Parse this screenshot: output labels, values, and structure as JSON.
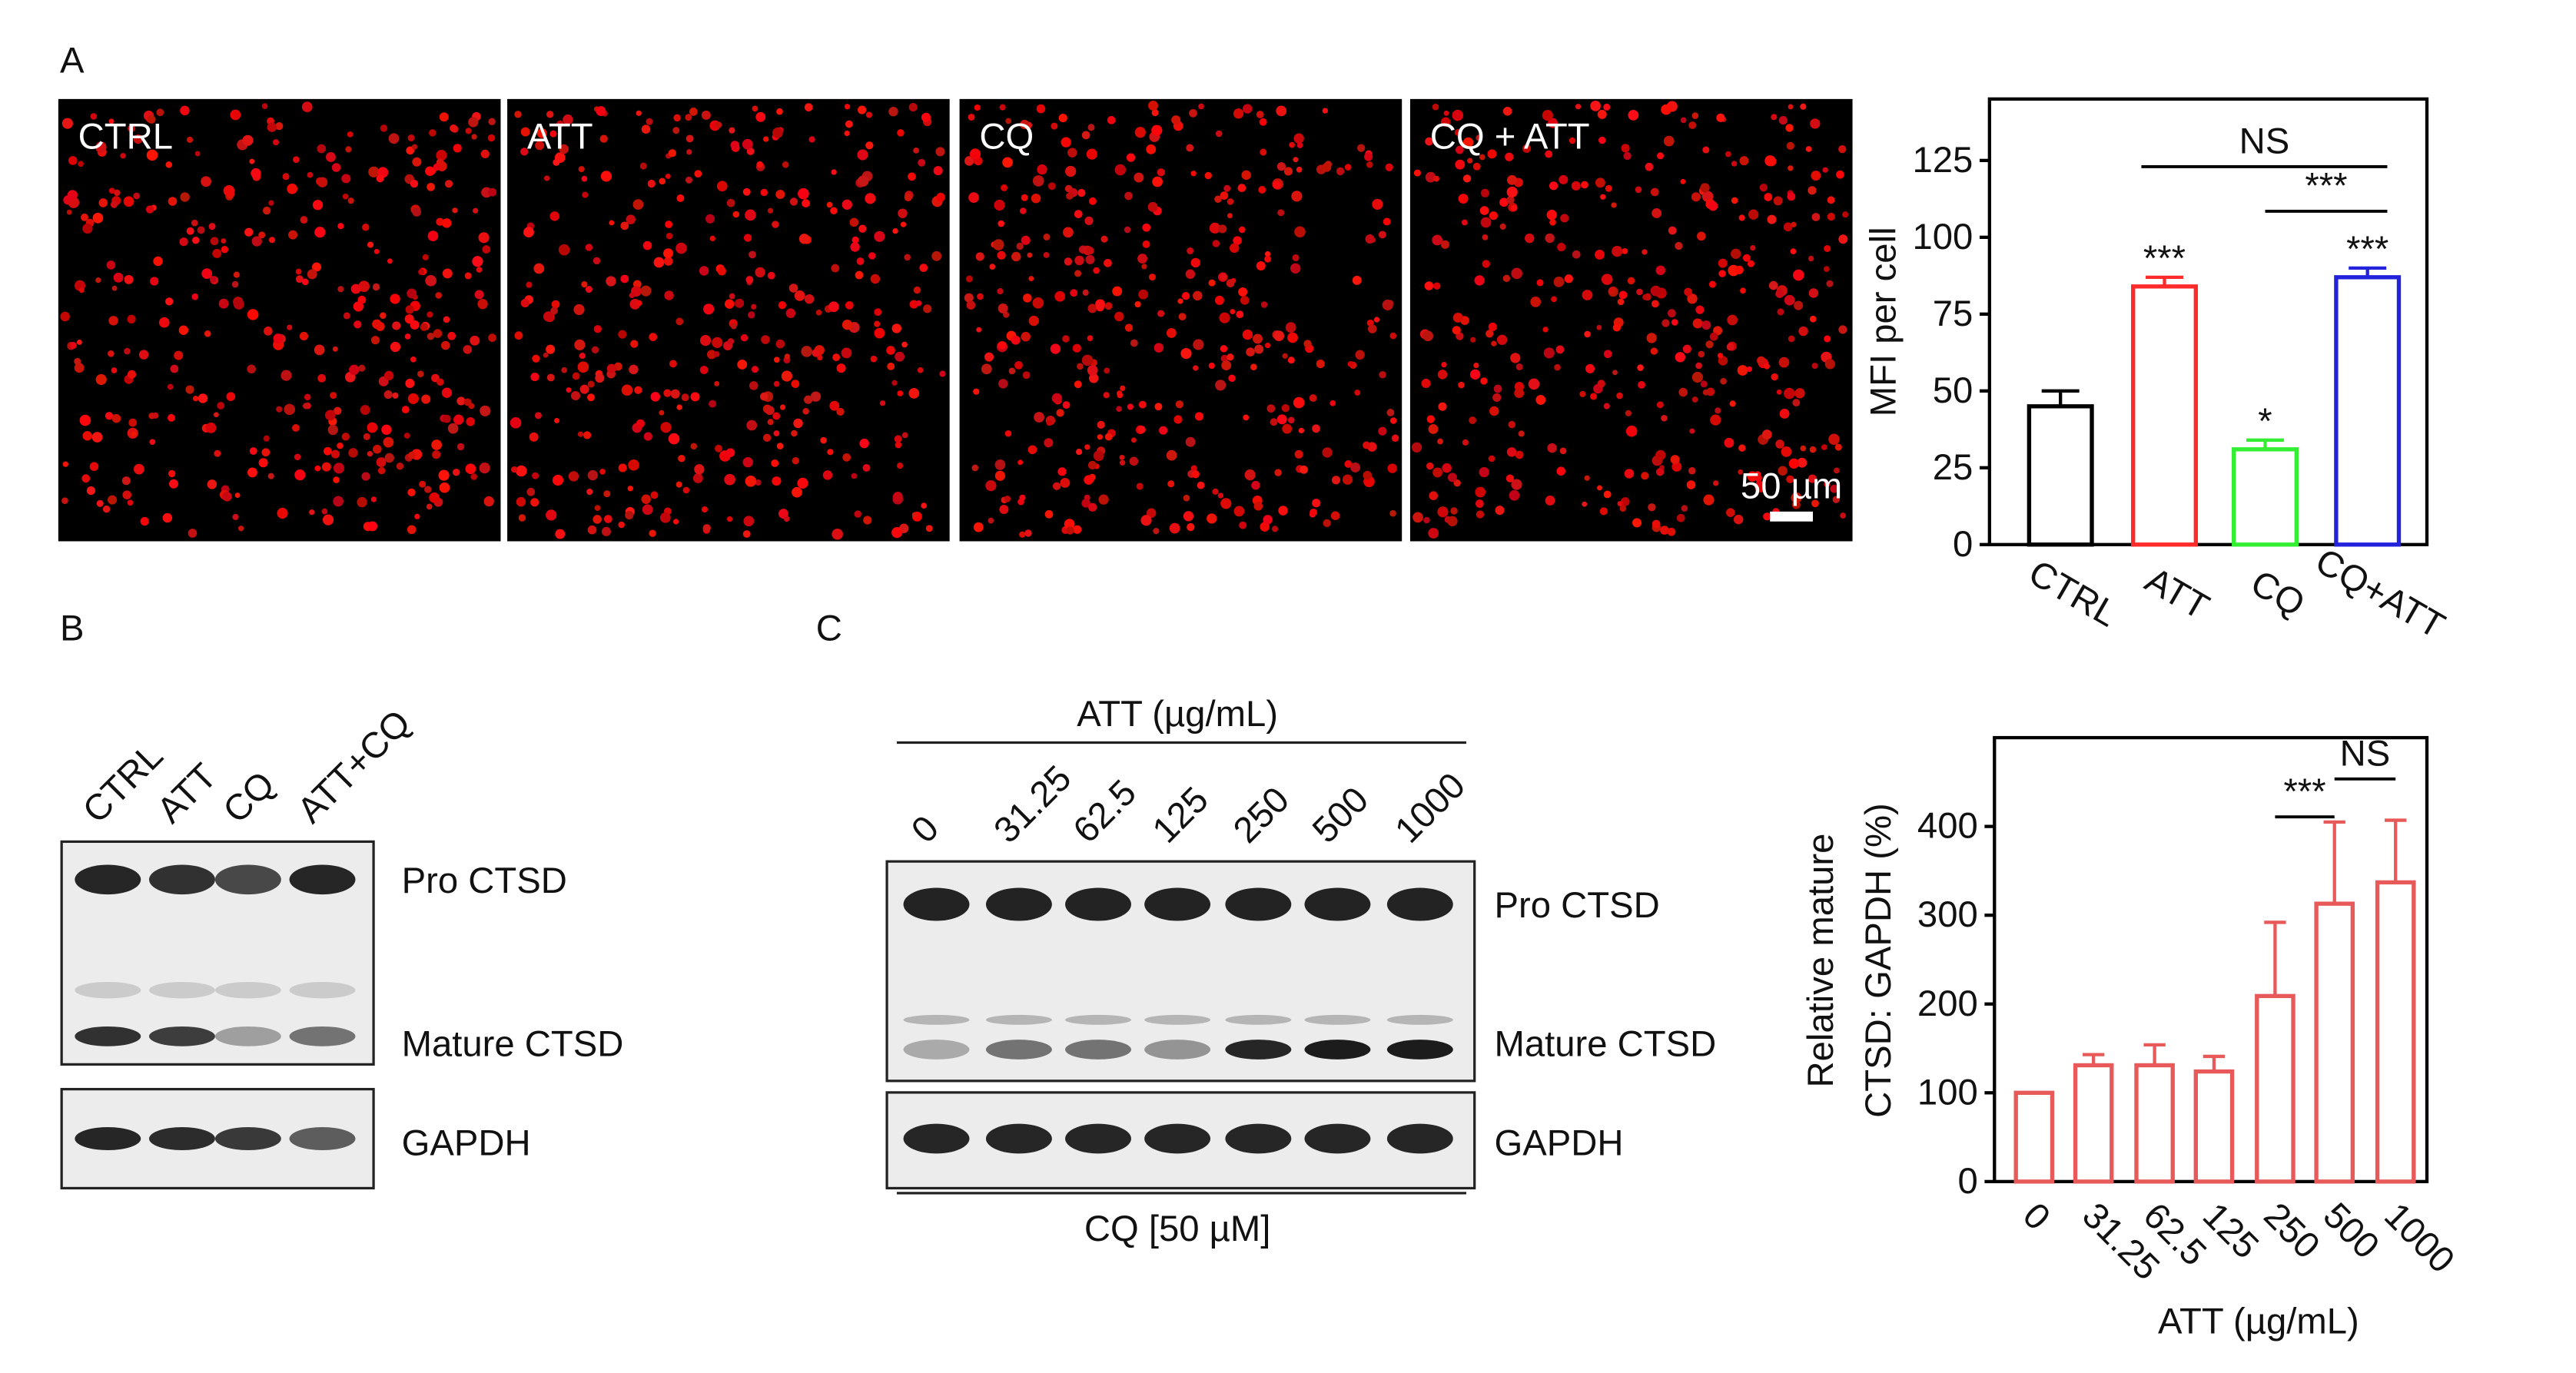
{
  "panel_labels": [
    "A",
    "B",
    "C"
  ],
  "panel_a": {
    "images": [
      "CTRL",
      "ATT",
      "CQ",
      "CQ + ATT"
    ],
    "scale_bar": "50 µm"
  },
  "panel_b": {
    "lanes": [
      "CTRL",
      "ATT",
      "CQ",
      "ATT+CQ"
    ],
    "bands": [
      "Pro CTSD",
      "Mature CTSD",
      "GAPDH"
    ]
  },
  "panel_c": {
    "treatment": "ATT (µg/mL)",
    "lanes": [
      "0",
      "31.25",
      "62.5",
      "125",
      "250",
      "500",
      "1000"
    ],
    "bands": [
      "Pro CTSD",
      "Mature CTSD",
      "GAPDH"
    ],
    "footer": "CQ [50 µM]"
  },
  "chart_data": [
    {
      "type": "bar",
      "ylabel": "MFI per cell",
      "categories": [
        "CTRL",
        "ATT",
        "CQ",
        "CQ+ATT"
      ],
      "values": [
        45,
        84,
        31,
        87
      ],
      "errors": [
        5,
        3,
        3,
        3
      ],
      "colors": [
        "#000000",
        "#ff2a2a",
        "#33ee33",
        "#2222dd"
      ],
      "significance": [
        null,
        "***",
        "*",
        "***"
      ],
      "brackets": [
        {
          "text": "NS",
          "between": [
            1,
            3
          ]
        },
        {
          "text": "***",
          "between": [
            2,
            3
          ]
        }
      ],
      "ylim": [
        0,
        145
      ],
      "yticks": [
        0,
        25,
        50,
        75,
        100,
        125
      ]
    },
    {
      "type": "bar",
      "ylabel": [
        "Relative mature",
        "CTSD: GAPDH (%)"
      ],
      "xlabel": "ATT (µg/mL)",
      "categories": [
        "0",
        "31.25",
        "62.5",
        "125",
        "250",
        "500",
        "1000"
      ],
      "values": [
        100,
        131,
        131,
        124,
        209,
        313,
        337
      ],
      "errors": [
        0,
        12,
        23,
        17,
        83,
        92,
        70
      ],
      "color": "#e85a5a",
      "brackets": [
        {
          "text": "***",
          "between": [
            4,
            5
          ]
        },
        {
          "text": "NS",
          "between": [
            5,
            6
          ]
        }
      ],
      "ylim": [
        0,
        500
      ],
      "yticks": [
        0,
        100,
        200,
        300,
        400
      ]
    }
  ]
}
